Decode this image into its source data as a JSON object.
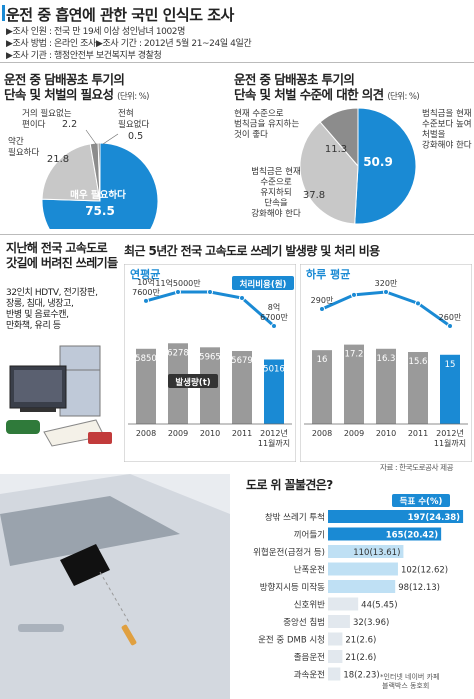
{
  "header": {
    "title": "운전 중 흡연에 관한 국민 인식도 조사",
    "meta": [
      "▶조사 인원 : 전국 만 19세 이상 성인남녀 1002명",
      "▶조사 방법 : 온라인 조사",
      "▶조사 기간 : 2012년 5월 21~24일 4일간",
      "▶조사 기관 : 행정안전부 보건복지부 경찰청"
    ]
  },
  "pie1": {
    "title_line1": "운전 중 담배꽁초 투기의",
    "title_line2": "단속 및 처벌의 필요성",
    "unit": "(단위: %)",
    "chart_data": {
      "type": "pie",
      "slices": [
        {
          "label": "매우 필요하다",
          "value": 75.5,
          "color": "#1a8ad4"
        },
        {
          "label": "약간 필요하다",
          "value": 21.8,
          "color": "#c8c8c8"
        },
        {
          "label": "거의 필요없는 편이다",
          "value": 2.2,
          "color": "#8c8c8c"
        },
        {
          "label": "전혀 필요없다",
          "value": 0.5,
          "color": "#5a5a5a"
        }
      ]
    },
    "labels": {
      "s0_name": "매우 필요하다",
      "s0_val": "75.5",
      "s1_name1": "약간",
      "s1_name2": "필요하다",
      "s1_val": "21.8",
      "s2_name1": "거의 필요없는",
      "s2_name2": "편이다",
      "s2_val": "2.2",
      "s3_name1": "전혀",
      "s3_name2": "필요없다",
      "s3_val": "0.5"
    }
  },
  "pie2": {
    "title_line1": "운전 중 담배꽁초 투기의",
    "title_line2": "단속 및 처벌 수준에 대한 의견",
    "unit": "(단위: %)",
    "chart_data": {
      "type": "pie",
      "slices": [
        {
          "label": "범칙금을 현재 수준보다 높여 처벌을 강화해야 한다",
          "value": 50.9,
          "color": "#1a8ad4"
        },
        {
          "label": "범칙금은 현재 수준으로 유지하되 단속을 강화해야 한다",
          "value": 37.8,
          "color": "#c8c8c8"
        },
        {
          "label": "현재 수준으로 범칙금을 유지하는 것이 좋다",
          "value": 11.3,
          "color": "#8c8c8c"
        }
      ]
    },
    "labels": {
      "s0_lines": [
        "범칙금을 현재",
        "수준보다 높여",
        "처벌을",
        "강화해야 한다"
      ],
      "s0_val": "50.9",
      "s1_lines": [
        "범칙금은 현재",
        "수준으로",
        "유지하되",
        "단속을",
        "강화해야 한다"
      ],
      "s1_val": "37.8",
      "s2_lines": [
        "현재 수준으로",
        "범칙금을 유지하는",
        "것이 좋다"
      ],
      "s2_val": "11.3"
    }
  },
  "trash": {
    "title_line1": "지난해 전국 고속도로",
    "title_line2": "갓길에 버려진 쓰레기들",
    "items": [
      "32인치 HDTV, 전기장판,",
      "장롱, 침대, 냉장고,",
      "반병 및 음료수캔,",
      "만화책, 유리 등"
    ]
  },
  "trend": {
    "title": "최근 5년간 전국 고속도로 쓰레기 발생량 및 처리 비용",
    "source": "자료 : 한국도로공사 제공"
  },
  "annual": {
    "title": "연평균",
    "legend_cost": "처리비용(원)",
    "legend_amount": "발생량(t)",
    "chart_data": {
      "type": "bar",
      "categories": [
        "2008",
        "2009",
        "2010",
        "2011",
        "2012년 11월까지"
      ],
      "category_lines": [
        [
          "2008"
        ],
        [
          "2009"
        ],
        [
          "2010"
        ],
        [
          "2011"
        ],
        [
          "2012년",
          "11월까지"
        ]
      ],
      "series": [
        {
          "name": "발생량(t)",
          "values": [
            5850,
            6278,
            5965,
            5679,
            5016
          ]
        },
        {
          "name": "처리비용(원)",
          "values": [
            107600,
            115000,
            115000,
            110000,
            86700
          ]
        }
      ],
      "bar_labels": [
        "5850",
        "6278",
        "5965",
        "5679",
        "5016"
      ],
      "cost_labels": [
        [
          "10억",
          "7600만"
        ],
        [
          "11억5000만"
        ],
        [],
        [],
        [
          "8억",
          "6700만"
        ]
      ],
      "ylim_amount": [
        0,
        7000
      ]
    }
  },
  "daily": {
    "title": "하루 평균",
    "chart_data": {
      "type": "bar",
      "categories": [
        "2008",
        "2009",
        "2010",
        "2011",
        "2012년 11월까지"
      ],
      "category_lines": [
        [
          "2008"
        ],
        [
          "2009"
        ],
        [
          "2010"
        ],
        [
          "2011"
        ],
        [
          "2012년",
          "11월까지"
        ]
      ],
      "series": [
        {
          "name": "발생량(t)",
          "values": [
            16,
            17.2,
            16.3,
            15.6,
            15
          ]
        },
        {
          "name": "처리비용(원)",
          "values": [
            290,
            315,
            320,
            300,
            260
          ]
        }
      ],
      "bar_labels": [
        "16",
        "17.2",
        "16.3",
        "15.6",
        "15"
      ],
      "cost_labels": [
        [
          "290만"
        ],
        [],
        [
          "320만"
        ],
        [],
        [
          "260만"
        ]
      ],
      "ylim_amount": [
        0,
        19.5
      ]
    }
  },
  "hazard": {
    "title": "도로 위 꼴불견은?",
    "legend": "득표 수(%)",
    "note_lines": [
      "*인터넷 네이버 카페",
      "블랙박스 동호회"
    ],
    "chart_data": {
      "type": "bar",
      "orientation": "horizontal",
      "categories": [
        "창밖 쓰레기 투척",
        "끼어들기",
        "위협운전(급정거 등)",
        "난폭운전",
        "방향지시등 미작동",
        "신호위반",
        "중앙선 침범",
        "운전 중 DMB 시청",
        "졸음운전",
        "과속운전"
      ],
      "values": [
        197,
        165,
        110,
        102,
        98,
        44,
        32,
        21,
        21,
        18
      ],
      "labels": [
        "197(24.38)",
        "165(20.42)",
        "110(13.61)",
        "102(12.62)",
        "98(12.13)",
        "44(5.45)",
        "32(3.96)",
        "21(2.6)",
        "21(2.6)",
        "18(2.23)"
      ],
      "xlim": [
        0,
        210
      ]
    }
  }
}
